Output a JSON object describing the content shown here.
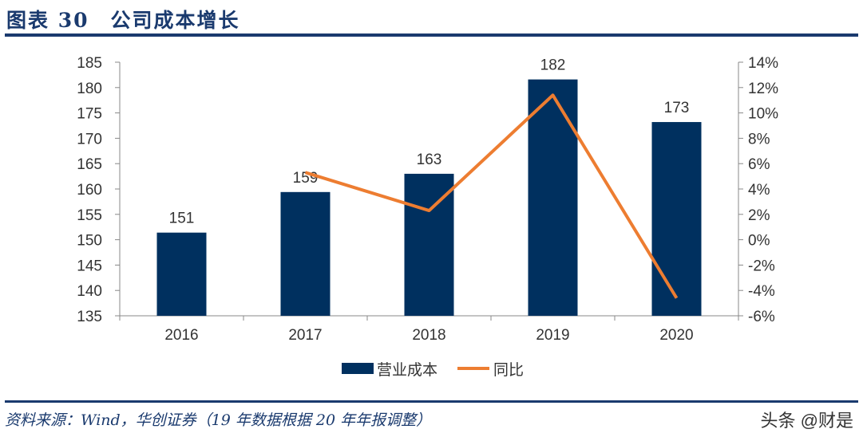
{
  "header": {
    "title": "图表 30　公司成本增长"
  },
  "footer": {
    "source": "资料来源：Wind，华创证券（19 年数据根据 20 年年报调整）",
    "watermark": "头条 @财是"
  },
  "chart_data": {
    "type": "bar+line",
    "title": "公司成本增长",
    "categories": [
      "2016",
      "2017",
      "2018",
      "2019",
      "2020"
    ],
    "series": [
      {
        "name": "营业成本",
        "type": "bar",
        "axis": "left",
        "color": "#00305f",
        "values": [
          151.4,
          159.4,
          163.0,
          181.6,
          173.2
        ],
        "labels": [
          "151",
          "159",
          "163",
          "182",
          "173"
        ]
      },
      {
        "name": "同比",
        "type": "line",
        "axis": "right",
        "color": "#ed7d31",
        "values": [
          null,
          5.3,
          2.3,
          11.4,
          -4.6
        ]
      }
    ],
    "left_axis": {
      "ylim": [
        135,
        185
      ],
      "ticks": [
        "135",
        "140",
        "145",
        "150",
        "155",
        "160",
        "165",
        "170",
        "175",
        "180",
        "185"
      ]
    },
    "right_axis": {
      "ylim": [
        -6,
        14
      ],
      "ticks": [
        "-6%",
        "-4%",
        "-2%",
        "0%",
        "2%",
        "4%",
        "6%",
        "8%",
        "10%",
        "12%",
        "14%"
      ]
    },
    "legend": {
      "position": "bottom",
      "labels": [
        "营业成本",
        "同比"
      ]
    },
    "grid": false
  }
}
